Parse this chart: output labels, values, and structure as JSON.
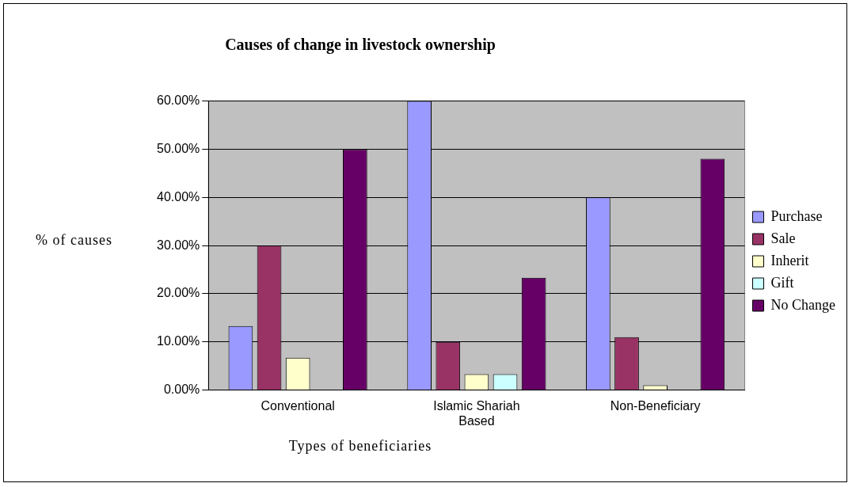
{
  "chart_data": {
    "type": "bar",
    "title": "Causes of change in livestock ownership",
    "xlabel": "Types of beneficiaries",
    "ylabel": "% of causes",
    "categories": [
      "Conventional",
      "Islamic Shariah Based",
      "Non-Beneficiary"
    ],
    "series": [
      {
        "name": "Purchase",
        "color": "#9999ff",
        "values": [
          13.3,
          60,
          40
        ]
      },
      {
        "name": "Sale",
        "color": "#993366",
        "values": [
          30,
          10,
          11
        ]
      },
      {
        "name": "Inherit",
        "color": "#ffffcc",
        "values": [
          6.7,
          3.3,
          1
        ]
      },
      {
        "name": "Gift",
        "color": "#ccffff",
        "values": [
          0,
          3.3,
          0
        ]
      },
      {
        "name": "No Change",
        "color": "#660066",
        "values": [
          50,
          23.3,
          48
        ]
      }
    ],
    "ylim": [
      0,
      60
    ],
    "yticks": [
      {
        "value": 0,
        "label": "0.00%"
      },
      {
        "value": 10,
        "label": "10.00%"
      },
      {
        "value": 20,
        "label": "20.00%"
      },
      {
        "value": 30,
        "label": "30.00%"
      },
      {
        "value": 40,
        "label": "40.00%"
      },
      {
        "value": 50,
        "label": "50.00%"
      },
      {
        "value": 60,
        "label": "60.00%"
      }
    ],
    "grid": "y",
    "legend": "right"
  }
}
